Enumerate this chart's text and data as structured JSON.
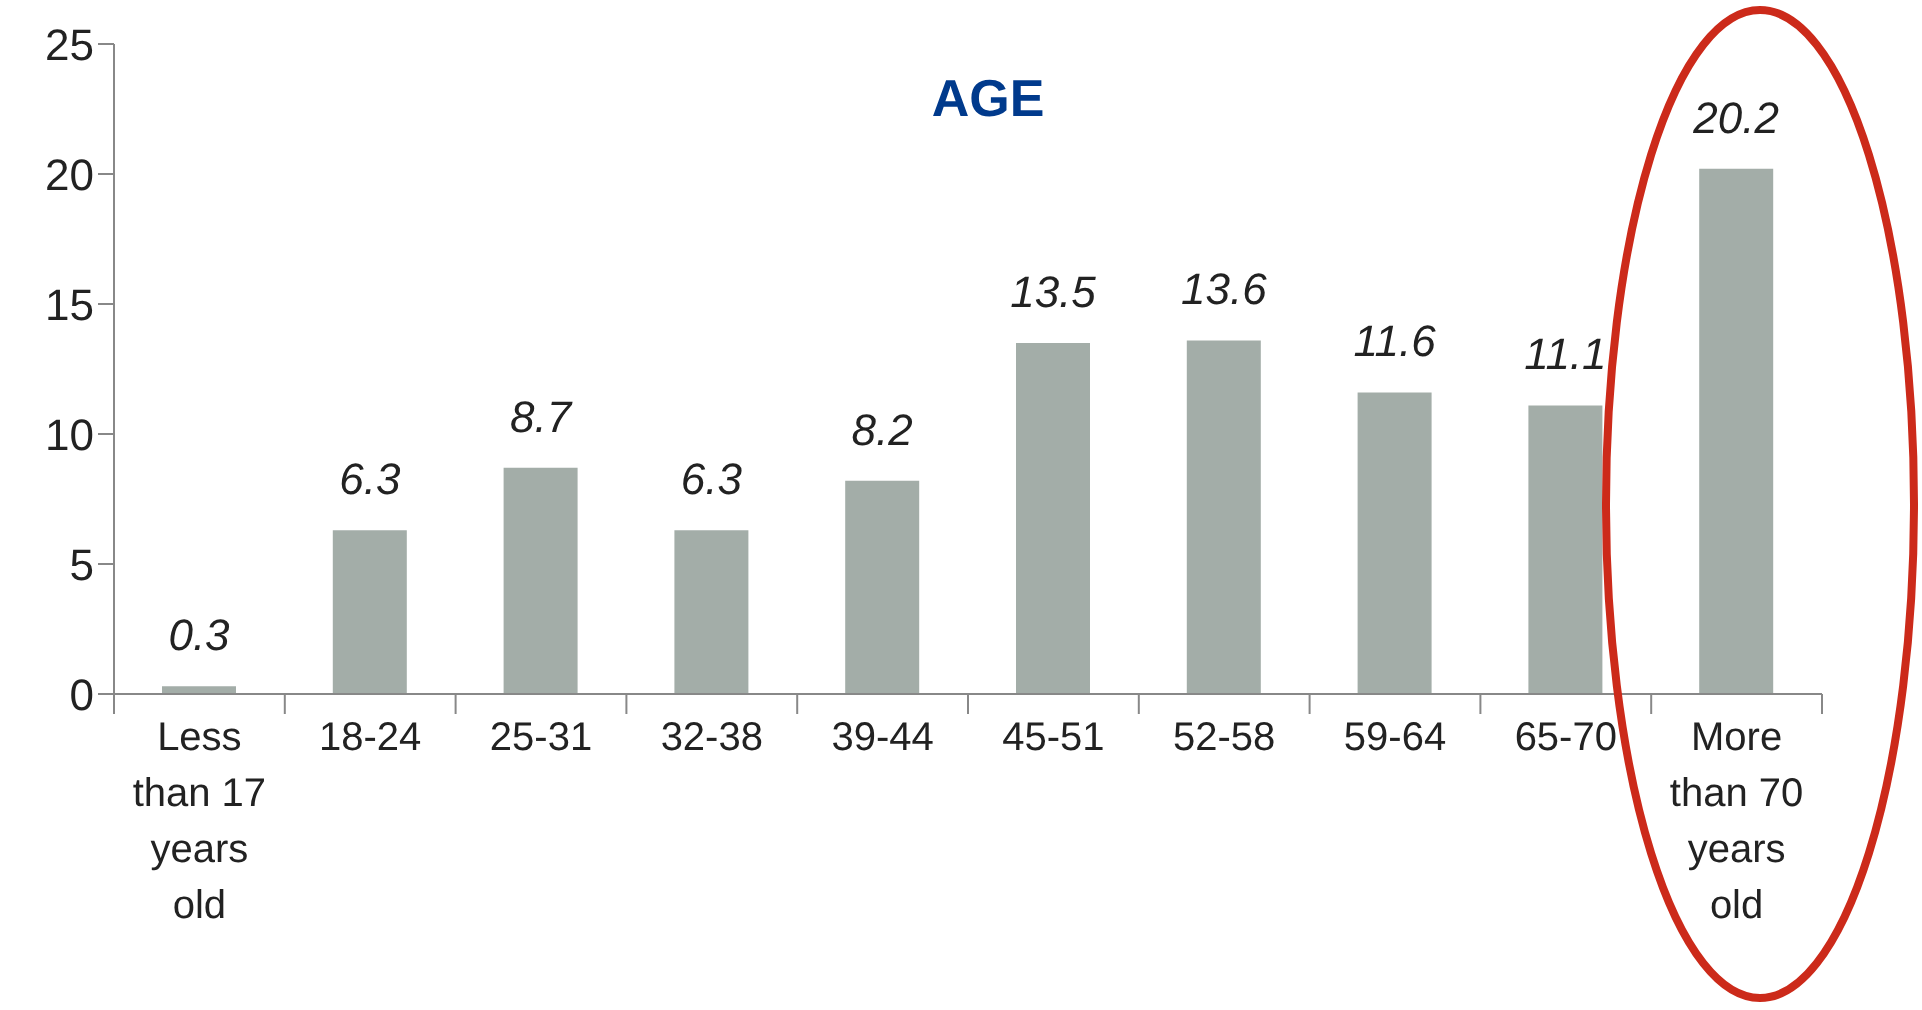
{
  "chart_data": {
    "type": "bar",
    "title": "AGE",
    "categories": [
      "Less than 17 years old",
      "18-24",
      "25-31",
      "32-38",
      "39-44",
      "45-51",
      "52-58",
      "59-64",
      "65-70",
      "More than 70 years old"
    ],
    "values": [
      0.3,
      6.3,
      8.7,
      6.3,
      8.2,
      13.5,
      13.6,
      11.6,
      11.1,
      20.2
    ],
    "color": "#a3ada8",
    "ylim": [
      0,
      25
    ],
    "yticks": [
      0,
      5,
      10,
      15,
      20,
      25
    ],
    "data_labels": true
  }
}
